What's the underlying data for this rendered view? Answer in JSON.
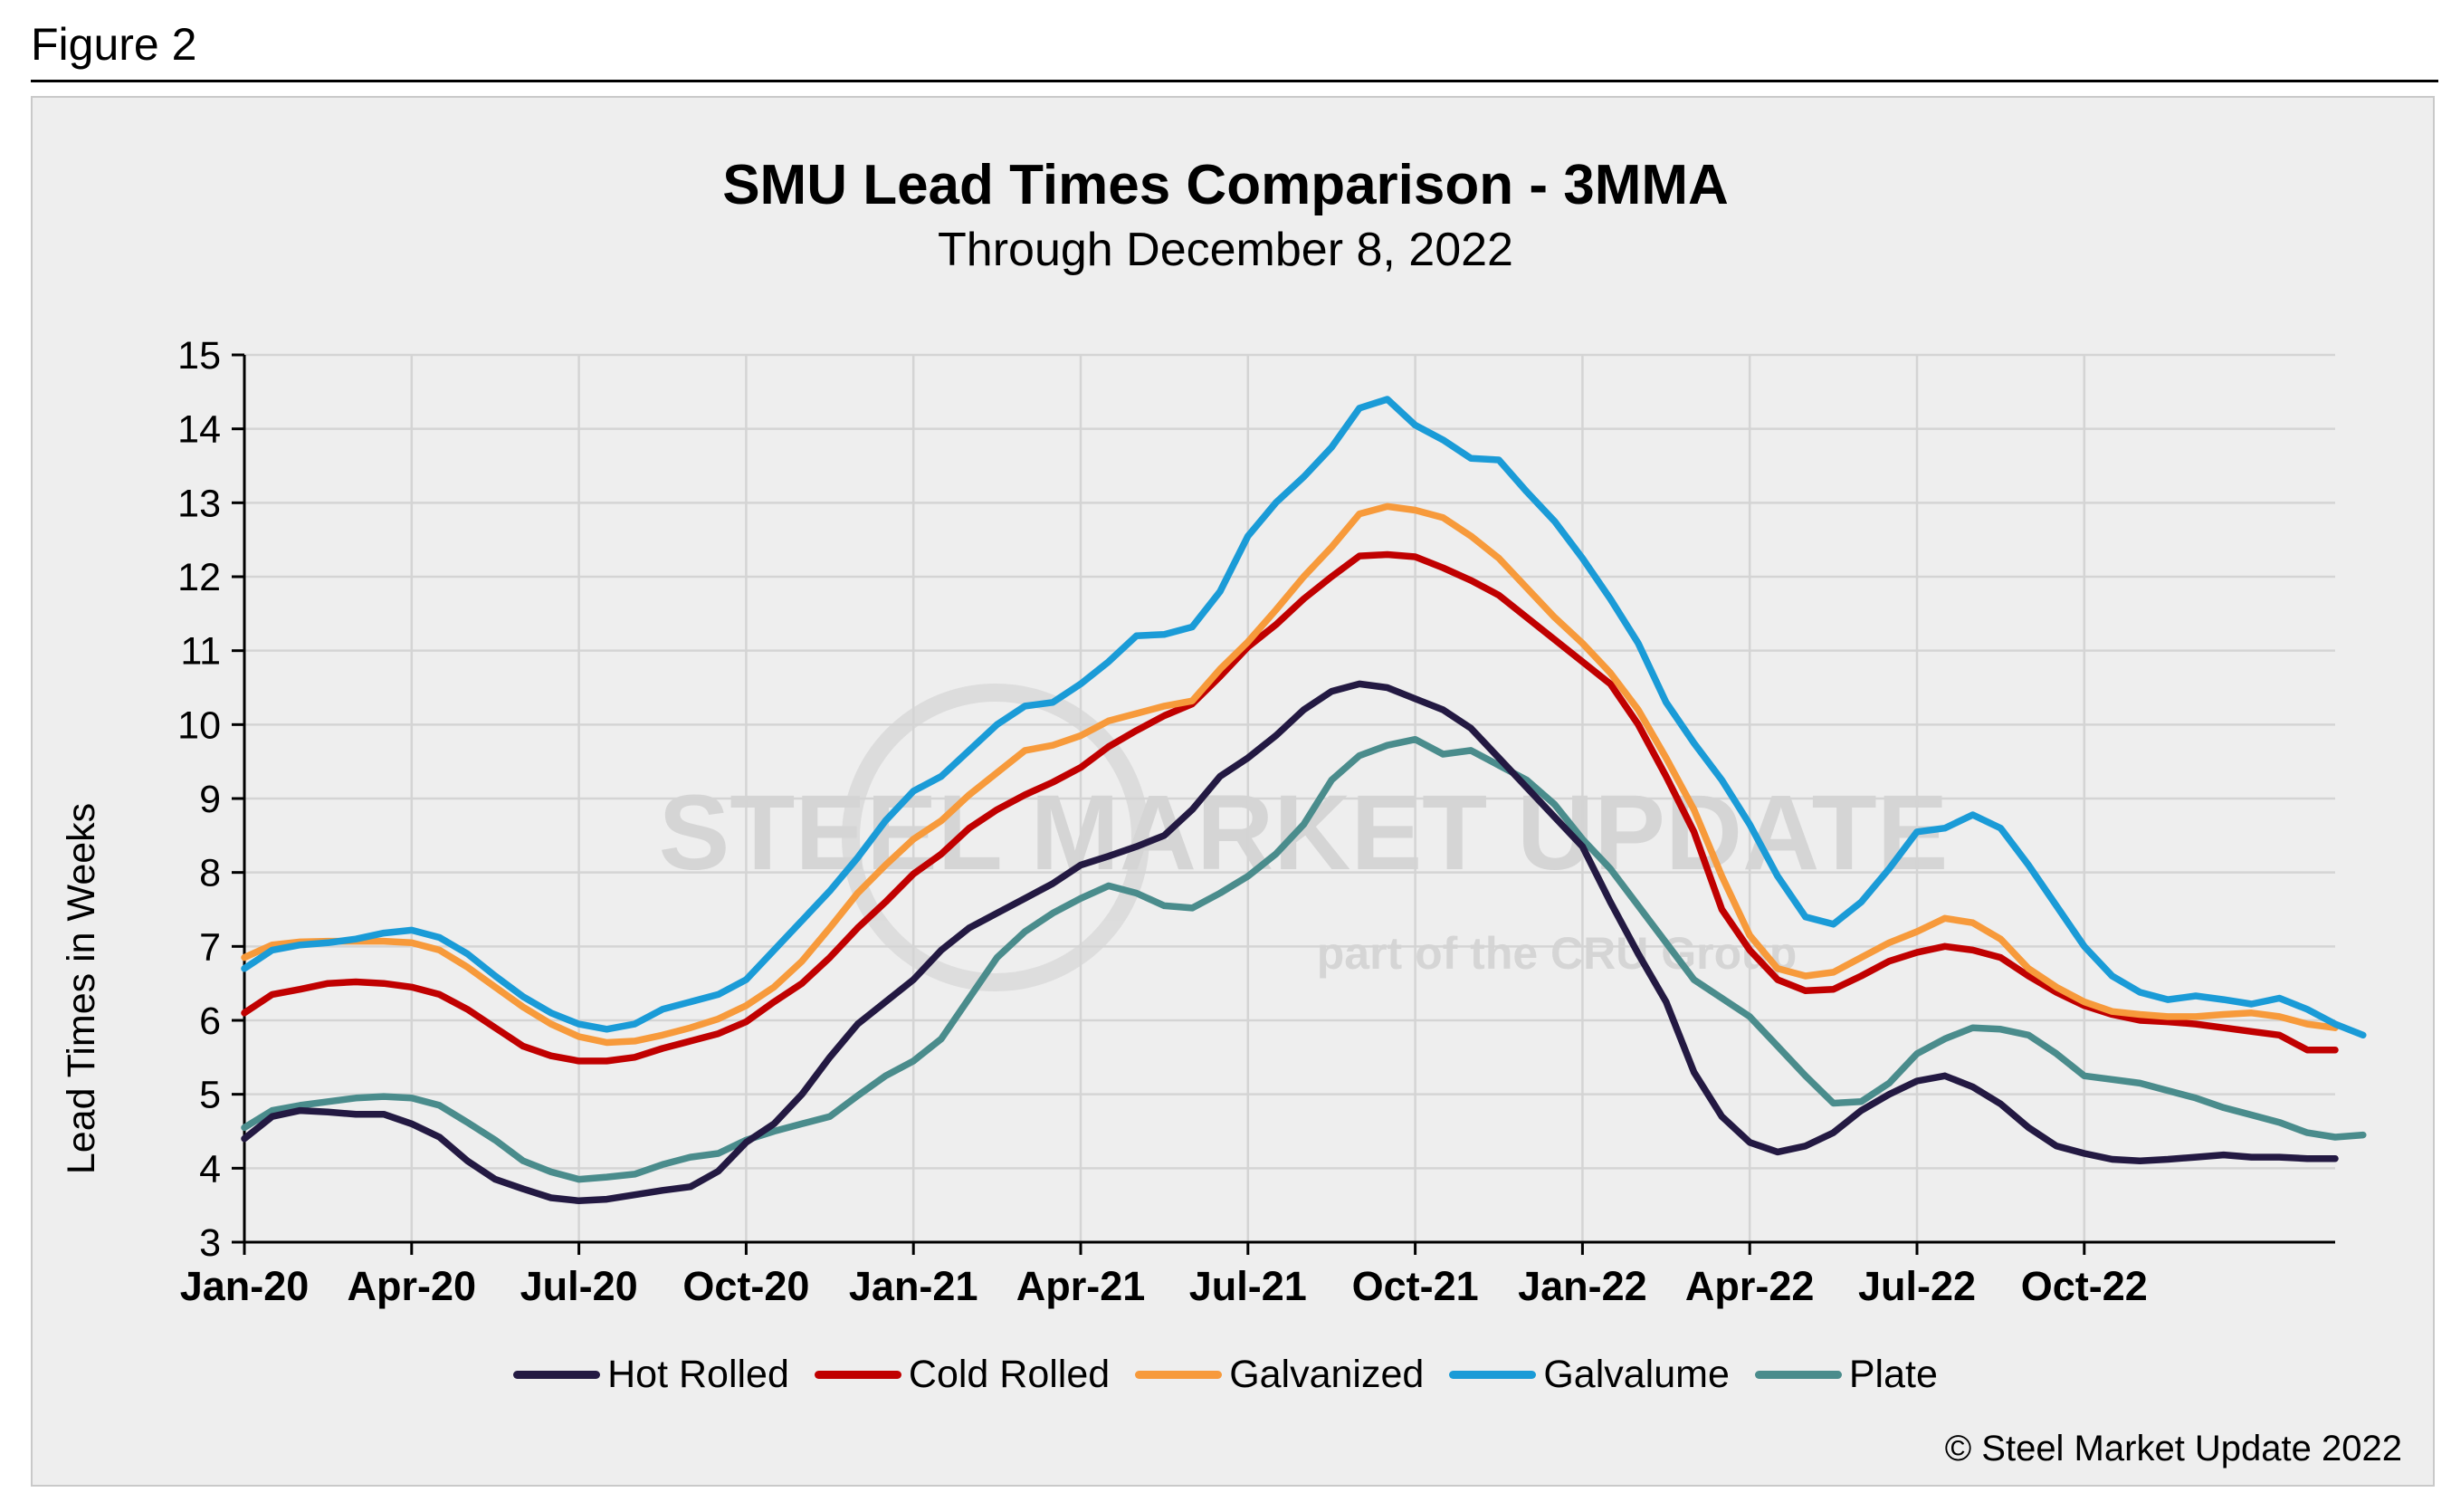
{
  "figure_label": "Figure 2",
  "copyright": "© Steel Market Update 2022",
  "watermark": {
    "line1": "STEEL MARKET UPDATE",
    "line2": "part of the CRU Group"
  },
  "colors": {
    "background": "#eeeeee",
    "grid": "#d4d4d4",
    "hot_rolled": "#231942",
    "cold_rolled": "#c00000",
    "galvanized": "#f79a3b",
    "galvalume": "#1a9bd7",
    "plate": "#4a8c8c"
  },
  "chart_data": {
    "type": "line",
    "title": "SMU Lead Times Comparison - 3MMA",
    "subtitle": "Through December 8, 2022",
    "xlabel": "",
    "ylabel": "Lead Times in Weeks",
    "ylim": [
      3,
      15
    ],
    "yticks": [
      3,
      4,
      5,
      6,
      7,
      8,
      9,
      10,
      11,
      12,
      13,
      14,
      15
    ],
    "x_tick_labels": [
      "Jan-20",
      "Apr-20",
      "Jul-20",
      "Oct-20",
      "Jan-21",
      "Apr-21",
      "Jul-21",
      "Oct-21",
      "Jan-22",
      "Apr-22",
      "Jul-22",
      "Oct-22"
    ],
    "x_range": [
      "2020-01",
      "2022-12"
    ],
    "frequency": "semi-monthly",
    "grid": true,
    "legend_position": "bottom",
    "series": [
      {
        "name": "Hot Rolled",
        "values": [
          4.4,
          4.7,
          4.78,
          4.76,
          4.73,
          4.73,
          4.6,
          4.42,
          4.1,
          3.85,
          3.72,
          3.6,
          3.56,
          3.58,
          3.64,
          3.7,
          3.75,
          3.96,
          4.35,
          4.6,
          5.0,
          5.5,
          5.95,
          6.25,
          6.55,
          6.95,
          7.25,
          7.45,
          7.65,
          7.85,
          8.1,
          8.22,
          8.35,
          8.5,
          8.85,
          9.3,
          9.55,
          9.85,
          10.2,
          10.45,
          10.55,
          10.5,
          10.35,
          10.2,
          9.95,
          9.55,
          9.15,
          8.75,
          8.35,
          7.6,
          6.9,
          6.25,
          5.3,
          4.7,
          4.35,
          4.22,
          4.3,
          4.48,
          4.78,
          5.0,
          5.18,
          5.25,
          5.1,
          4.87,
          4.55,
          4.3,
          4.2,
          4.12,
          4.1,
          4.12,
          4.15,
          4.18,
          4.15,
          4.15,
          4.13,
          4.13
        ]
      },
      {
        "name": "Cold Rolled",
        "values": [
          6.1,
          6.35,
          6.42,
          6.5,
          6.52,
          6.5,
          6.45,
          6.35,
          6.15,
          5.9,
          5.65,
          5.52,
          5.45,
          5.45,
          5.5,
          5.62,
          5.72,
          5.82,
          5.98,
          6.25,
          6.5,
          6.85,
          7.25,
          7.6,
          7.98,
          8.25,
          8.6,
          8.85,
          9.05,
          9.22,
          9.42,
          9.7,
          9.92,
          10.12,
          10.28,
          10.65,
          11.05,
          11.35,
          11.7,
          12.0,
          12.28,
          12.3,
          12.27,
          12.12,
          11.95,
          11.75,
          11.45,
          11.15,
          10.85,
          10.55,
          10.0,
          9.3,
          8.55,
          7.5,
          6.95,
          6.55,
          6.4,
          6.42,
          6.6,
          6.8,
          6.92,
          7.0,
          6.95,
          6.85,
          6.6,
          6.38,
          6.2,
          6.08,
          6.0,
          5.98,
          5.95,
          5.9,
          5.85,
          5.8,
          5.6,
          5.6
        ]
      },
      {
        "name": "Galvanized",
        "values": [
          6.85,
          7.02,
          7.06,
          7.07,
          7.07,
          7.07,
          7.05,
          6.95,
          6.72,
          6.45,
          6.18,
          5.95,
          5.78,
          5.7,
          5.72,
          5.8,
          5.9,
          6.02,
          6.2,
          6.45,
          6.8,
          7.25,
          7.72,
          8.1,
          8.45,
          8.7,
          9.05,
          9.35,
          9.65,
          9.72,
          9.85,
          10.05,
          10.15,
          10.25,
          10.32,
          10.75,
          11.12,
          11.55,
          12.0,
          12.4,
          12.85,
          12.95,
          12.9,
          12.8,
          12.55,
          12.25,
          11.85,
          11.45,
          11.1,
          10.7,
          10.2,
          9.55,
          8.85,
          7.95,
          7.15,
          6.7,
          6.6,
          6.65,
          6.85,
          7.05,
          7.2,
          7.38,
          7.32,
          7.1,
          6.7,
          6.45,
          6.25,
          6.12,
          6.08,
          6.05,
          6.05,
          6.08,
          6.1,
          6.05,
          5.95,
          5.9
        ]
      },
      {
        "name": "Galvalume",
        "values": [
          6.7,
          6.95,
          7.02,
          7.05,
          7.1,
          7.18,
          7.22,
          7.12,
          6.9,
          6.6,
          6.32,
          6.1,
          5.95,
          5.88,
          5.95,
          6.15,
          6.25,
          6.35,
          6.55,
          6.95,
          7.35,
          7.75,
          8.2,
          8.7,
          9.1,
          9.3,
          9.65,
          10.0,
          10.25,
          10.3,
          10.55,
          10.85,
          11.2,
          11.22,
          11.32,
          11.8,
          12.55,
          13.0,
          13.35,
          13.75,
          14.28,
          14.4,
          14.05,
          13.85,
          13.6,
          13.58,
          13.15,
          12.75,
          12.25,
          11.7,
          11.1,
          10.3,
          9.75,
          9.25,
          8.65,
          7.95,
          7.4,
          7.3,
          7.6,
          8.05,
          8.55,
          8.6,
          8.78,
          8.6,
          8.1,
          7.55,
          7.0,
          6.6,
          6.38,
          6.28,
          6.33,
          6.28,
          6.22,
          6.3,
          6.15,
          5.95,
          5.8
        ]
      },
      {
        "name": "Plate",
        "values": [
          4.55,
          4.78,
          4.85,
          4.9,
          4.95,
          4.97,
          4.95,
          4.85,
          4.62,
          4.38,
          4.1,
          3.95,
          3.85,
          3.88,
          3.92,
          4.05,
          4.15,
          4.2,
          4.38,
          4.5,
          4.6,
          4.7,
          4.98,
          5.25,
          5.45,
          5.75,
          6.3,
          6.85,
          7.2,
          7.45,
          7.65,
          7.82,
          7.72,
          7.55,
          7.52,
          7.72,
          7.95,
          8.25,
          8.65,
          9.25,
          9.58,
          9.72,
          9.8,
          9.6,
          9.65,
          9.45,
          9.25,
          8.92,
          8.45,
          8.05,
          7.55,
          7.05,
          6.55,
          6.3,
          6.05,
          5.65,
          5.25,
          4.88,
          4.9,
          5.15,
          5.55,
          5.75,
          5.9,
          5.88,
          5.8,
          5.55,
          5.25,
          5.2,
          5.15,
          5.05,
          4.95,
          4.82,
          4.72,
          4.62,
          4.48,
          4.42,
          4.45
        ]
      }
    ]
  }
}
